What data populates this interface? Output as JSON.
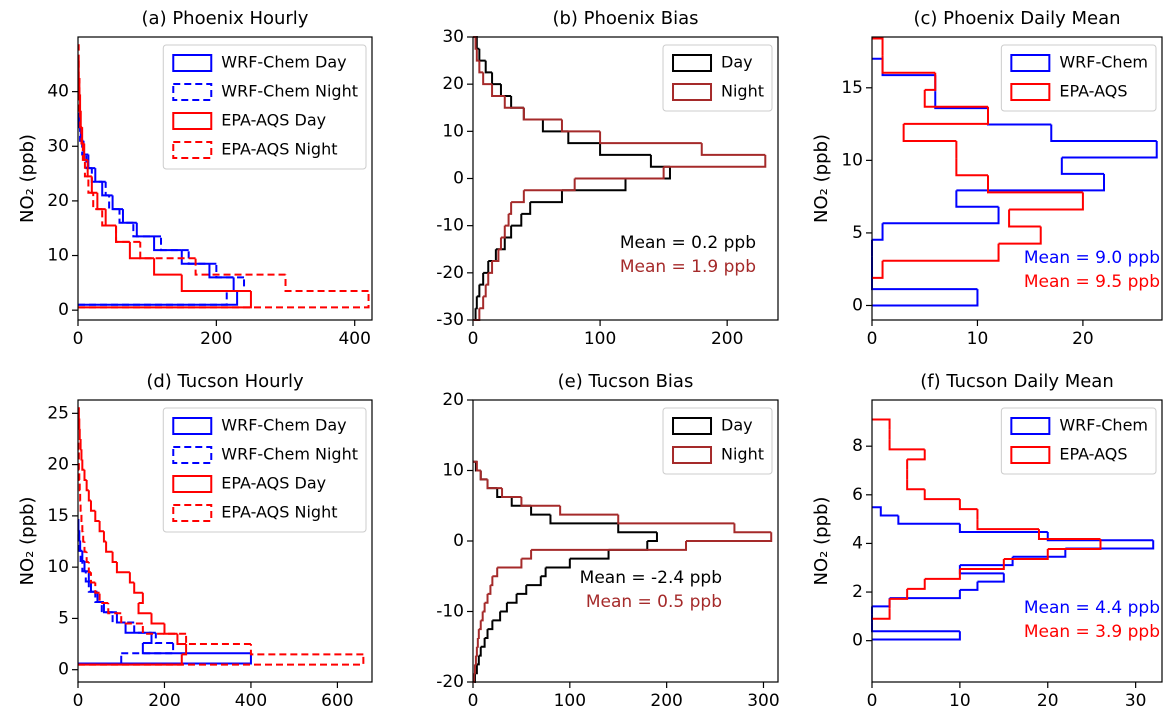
{
  "chart_data": [
    {
      "type": "histogram",
      "orientation": "horizontal",
      "title": "(a) Phoenix Hourly",
      "y_label": "NO₂ (ppb)",
      "xlim": [
        0,
        425
      ],
      "xticks": [
        0,
        200,
        400
      ],
      "ylim": [
        -1.8,
        50
      ],
      "yticks": [
        0,
        10,
        20,
        30,
        40
      ],
      "legend": "upper right",
      "series": [
        {
          "name": "WRF-Chem Day",
          "color": "#0000ff",
          "linestyle": "solid",
          "bins": [
            1,
            3.5,
            6,
            8.5,
            11,
            13.5,
            16,
            18.5,
            21,
            23.5,
            26,
            28.5,
            31,
            33.5,
            36
          ],
          "values": [
            230,
            225,
            190,
            150,
            110,
            85,
            65,
            50,
            35,
            25,
            15,
            8,
            4,
            2
          ]
        },
        {
          "name": "WRF-Chem Night",
          "color": "#0000ff",
          "linestyle": "dashed",
          "bins": [
            1,
            3.5,
            6,
            8.5,
            11,
            13.5,
            16,
            18.5,
            21,
            23.5,
            26,
            28.5,
            31,
            33.5,
            36
          ],
          "values": [
            215,
            240,
            200,
            160,
            120,
            80,
            60,
            45,
            40,
            20,
            12,
            6,
            3,
            1
          ]
        },
        {
          "name": "EPA-AQS Day",
          "color": "#ff0000",
          "linestyle": "solid",
          "bins": [
            0.5,
            3.5,
            6.5,
            9.5,
            12.5,
            15.5,
            18.5,
            21.5,
            24.5,
            27.5,
            30.5,
            33.5,
            36.5,
            39.5,
            42.5,
            45.5
          ],
          "values": [
            250,
            150,
            110,
            75,
            55,
            40,
            28,
            20,
            14,
            9,
            6,
            4,
            3,
            2,
            1
          ]
        },
        {
          "name": "EPA-AQS Night",
          "color": "#ff0000",
          "linestyle": "dashed",
          "bins": [
            0.5,
            3.5,
            6.5,
            9.5,
            12.5,
            15.5,
            18.5,
            21.5,
            24.5,
            27.5,
            30.5,
            33.5,
            36.5,
            39.5,
            42.5,
            45.5,
            48.5
          ],
          "values": [
            420,
            300,
            170,
            90,
            55,
            35,
            22,
            15,
            10,
            7,
            5,
            3,
            2,
            2,
            1,
            1
          ]
        }
      ]
    },
    {
      "type": "histogram",
      "orientation": "horizontal",
      "title": "(b) Phoenix Bias",
      "xlim": [
        0,
        240
      ],
      "xticks": [
        0,
        100,
        200
      ],
      "ylim": [
        -30,
        30
      ],
      "yticks": [
        -30,
        -20,
        -10,
        0,
        10,
        20,
        30
      ],
      "legend": "upper right",
      "annotations": [
        {
          "text": "Mean = 0.2 ppb",
          "color": "#000000"
        },
        {
          "text": "Mean = 1.9 ppb",
          "color": "#a52a2a"
        }
      ],
      "series": [
        {
          "name": "Day",
          "color": "#000000",
          "linestyle": "solid",
          "bins": [
            -30,
            -27.5,
            -25,
            -22.5,
            -20,
            -17.5,
            -15,
            -12.5,
            -10,
            -7.5,
            -5,
            -2.5,
            0,
            2.5,
            5,
            7.5,
            10,
            12.5,
            15,
            17.5,
            20,
            22.5,
            25,
            27.5,
            30
          ],
          "values": [
            2,
            3,
            5,
            8,
            12,
            18,
            25,
            30,
            38,
            45,
            70,
            120,
            155,
            140,
            100,
            75,
            55,
            40,
            30,
            22,
            15,
            10,
            5,
            3
          ]
        },
        {
          "name": "Night",
          "color": "#a52a2a",
          "linestyle": "solid",
          "bins": [
            -30,
            -27.5,
            -25,
            -22.5,
            -20,
            -17.5,
            -15,
            -12.5,
            -10,
            -7.5,
            -5,
            -2.5,
            0,
            2.5,
            5,
            7.5,
            10,
            12.5,
            15,
            17.5,
            20,
            22.5,
            25,
            27.5,
            30
          ],
          "values": [
            5,
            8,
            10,
            12,
            15,
            20,
            22,
            25,
            28,
            30,
            40,
            80,
            150,
            230,
            180,
            100,
            70,
            40,
            25,
            15,
            8,
            5,
            3,
            2
          ]
        }
      ]
    },
    {
      "type": "histogram",
      "orientation": "horizontal",
      "title": "(c) Phoenix Daily Mean",
      "y_label": "NO₂ (ppb)",
      "xlim": [
        0,
        27.5
      ],
      "xticks": [
        0,
        10,
        20
      ],
      "ylim": [
        -1,
        18.5
      ],
      "yticks": [
        0,
        5,
        10,
        15
      ],
      "legend": "upper right",
      "annotations": [
        {
          "text": "Mean = 9.0 ppb",
          "color": "#0000ff"
        },
        {
          "text": "Mean = 9.5 ppb",
          "color": "#ff0000"
        }
      ],
      "series": [
        {
          "name": "WRF-Chem",
          "color": "#0000ff",
          "linestyle": "solid",
          "bins": [
            0,
            1.13,
            2.27,
            3.4,
            4.53,
            5.67,
            6.8,
            7.93,
            9.07,
            10.2,
            11.33,
            12.47,
            13.6,
            14.73,
            15.87,
            17
          ],
          "values": [
            10,
            0,
            0,
            0,
            1,
            12,
            8,
            22,
            18,
            27,
            17,
            11,
            6,
            6,
            1
          ]
        },
        {
          "name": "EPA-AQS",
          "color": "#ff0000",
          "linestyle": "solid",
          "bins": [
            1.9,
            3.08,
            4.26,
            5.44,
            6.61,
            7.79,
            8.97,
            10.15,
            11.33,
            12.51,
            13.69,
            14.86,
            16.04,
            17.22,
            18.4
          ],
          "values": [
            1,
            12,
            16,
            13,
            20,
            11,
            8,
            8,
            3,
            11,
            5,
            6,
            1,
            1
          ]
        }
      ]
    },
    {
      "type": "histogram",
      "orientation": "horizontal",
      "title": "(d) Tucson Hourly",
      "y_label": "NO₂ (ppb)",
      "xlim": [
        0,
        680
      ],
      "xticks": [
        0,
        200,
        400,
        600
      ],
      "ylim": [
        -1.2,
        26.3
      ],
      "yticks": [
        0,
        5,
        10,
        15,
        20,
        25
      ],
      "legend": "upper right",
      "series": [
        {
          "name": "WRF-Chem Day",
          "color": "#0000ff",
          "linestyle": "solid",
          "bins": [
            0.6,
            1.6,
            2.6,
            3.6,
            4.6,
            5.6,
            6.6,
            7.6,
            8.6,
            9.6,
            10.6,
            11.6,
            12.6,
            13.6,
            14.6
          ],
          "values": [
            400,
            150,
            170,
            110,
            90,
            60,
            45,
            30,
            25,
            15,
            10,
            5,
            3,
            1
          ]
        },
        {
          "name": "WRF-Chem Night",
          "color": "#0000ff",
          "linestyle": "dashed",
          "bins": [
            0.6,
            1.6,
            2.6,
            3.6,
            4.6,
            5.6,
            6.6,
            7.6,
            8.6,
            9.6,
            10.6,
            11.6,
            12.6,
            13.6
          ],
          "values": [
            100,
            220,
            180,
            130,
            80,
            55,
            40,
            25,
            18,
            10,
            6,
            3,
            1
          ]
        },
        {
          "name": "EPA-AQS Day",
          "color": "#ff0000",
          "linestyle": "solid",
          "bins": [
            0.5,
            1.5,
            2.5,
            3.5,
            4.5,
            5.5,
            6.5,
            7.5,
            8.5,
            9.5,
            10.5,
            11.5,
            12.5,
            13.5,
            14.5,
            15.5,
            16.5,
            17.5,
            18.5,
            19.5,
            20.5,
            21.5,
            22.5,
            23.5,
            24.5,
            25.5
          ],
          "values": [
            240,
            250,
            230,
            200,
            170,
            140,
            150,
            130,
            120,
            90,
            80,
            65,
            60,
            50,
            40,
            30,
            25,
            20,
            15,
            10,
            8,
            6,
            4,
            3,
            2
          ]
        },
        {
          "name": "EPA-AQS Night",
          "color": "#ff0000",
          "linestyle": "dashed",
          "bins": [
            0.5,
            1.5,
            2.5,
            3.5,
            4.5,
            5.5,
            6.5,
            7.5,
            8.5,
            9.5,
            10.5,
            11.5,
            12.5,
            13.5,
            14.5,
            15.5,
            16.5,
            17.5,
            18.5,
            19.5,
            20.5,
            21.5,
            22.5
          ],
          "values": [
            660,
            400,
            250,
            150,
            100,
            70,
            50,
            40,
            30,
            25,
            20,
            15,
            12,
            10,
            8,
            6,
            5,
            4,
            3,
            2,
            2,
            1
          ]
        }
      ]
    },
    {
      "type": "histogram",
      "orientation": "horizontal",
      "title": "(e) Tucson Bias",
      "xlim": [
        0,
        315
      ],
      "xticks": [
        0,
        100,
        200,
        300
      ],
      "ylim": [
        -20,
        20
      ],
      "yticks": [
        -20,
        -10,
        0,
        10,
        20
      ],
      "legend": "upper right",
      "annotations": [
        {
          "text": "Mean = -2.4 ppb",
          "color": "#000000"
        },
        {
          "text": "Mean = 0.5 ppb",
          "color": "#a52a2a"
        }
      ],
      "series": [
        {
          "name": "Day",
          "color": "#000000",
          "linestyle": "solid",
          "bins": [
            -20,
            -18.75,
            -17.5,
            -16.25,
            -15,
            -13.75,
            -12.5,
            -11.25,
            -10,
            -8.75,
            -7.5,
            -6.25,
            -5,
            -3.75,
            -2.5,
            -1.25,
            0,
            1.25,
            2.5,
            3.75,
            5,
            6.25,
            7.5,
            8.75,
            10,
            11.25
          ],
          "values": [
            2,
            4,
            6,
            8,
            12,
            15,
            20,
            28,
            35,
            45,
            55,
            70,
            75,
            100,
            140,
            180,
            190,
            150,
            80,
            60,
            40,
            25,
            15,
            8,
            3
          ]
        },
        {
          "name": "Night",
          "color": "#a52a2a",
          "linestyle": "solid",
          "bins": [
            -20,
            -18.75,
            -17.5,
            -16.25,
            -15,
            -13.75,
            -12.5,
            -11.25,
            -10,
            -8.75,
            -7.5,
            -6.25,
            -5,
            -3.75,
            -2.5,
            -1.25,
            0,
            1.25,
            2.5,
            3.75,
            5,
            6.25,
            7.5,
            8.75,
            10,
            11.25
          ],
          "values": [
            1,
            2,
            3,
            4,
            5,
            6,
            8,
            10,
            12,
            15,
            18,
            20,
            25,
            50,
            60,
            220,
            308,
            270,
            150,
            90,
            50,
            30,
            15,
            8,
            4
          ]
        }
      ]
    },
    {
      "type": "histogram",
      "orientation": "horizontal",
      "title": "(f) Tucson Daily Mean",
      "y_label": "NO₂ (ppb)",
      "xlim": [
        0,
        33
      ],
      "xticks": [
        0,
        10,
        20,
        30
      ],
      "ylim": [
        -1.7,
        9.9
      ],
      "yticks": [
        0,
        2,
        4,
        6,
        8
      ],
      "legend": "upper right",
      "annotations": [
        {
          "text": "Mean = 4.4 ppb",
          "color": "#0000ff"
        },
        {
          "text": "Mean = 3.9 ppb",
          "color": "#ff0000"
        }
      ],
      "series": [
        {
          "name": "WRF-Chem",
          "color": "#0000ff",
          "linestyle": "solid",
          "bins": [
            0.05,
            0.39,
            0.73,
            1.07,
            1.41,
            1.75,
            2.09,
            2.43,
            2.77,
            3.11,
            3.45,
            3.79,
            4.13,
            4.47,
            4.81,
            5.15,
            5.49
          ],
          "values": [
            10,
            0,
            0,
            0,
            2,
            10,
            12,
            15,
            10,
            16,
            22,
            32,
            20,
            10,
            3,
            1
          ]
        },
        {
          "name": "EPA-AQS",
          "color": "#ff0000",
          "linestyle": "solid",
          "bins": [
            0.9,
            1.31,
            1.72,
            2.13,
            2.54,
            2.95,
            3.36,
            3.77,
            4.18,
            4.59,
            5,
            5.41,
            5.82,
            6.23,
            6.64,
            7.05,
            7.46,
            7.87,
            8.28,
            8.69,
            9.1
          ],
          "values": [
            2,
            2,
            4,
            6,
            10,
            15,
            20,
            26,
            19,
            12,
            12,
            10,
            6,
            4,
            4,
            4,
            6,
            2,
            2,
            2
          ]
        }
      ]
    }
  ]
}
